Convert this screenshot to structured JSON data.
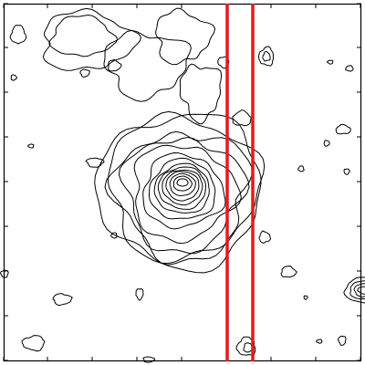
{
  "figure": {
    "kind": "contour-map",
    "contour_color": "#000000",
    "slit_color": "#e41a1c",
    "frame_color": "#000000",
    "slit_count": 2
  }
}
